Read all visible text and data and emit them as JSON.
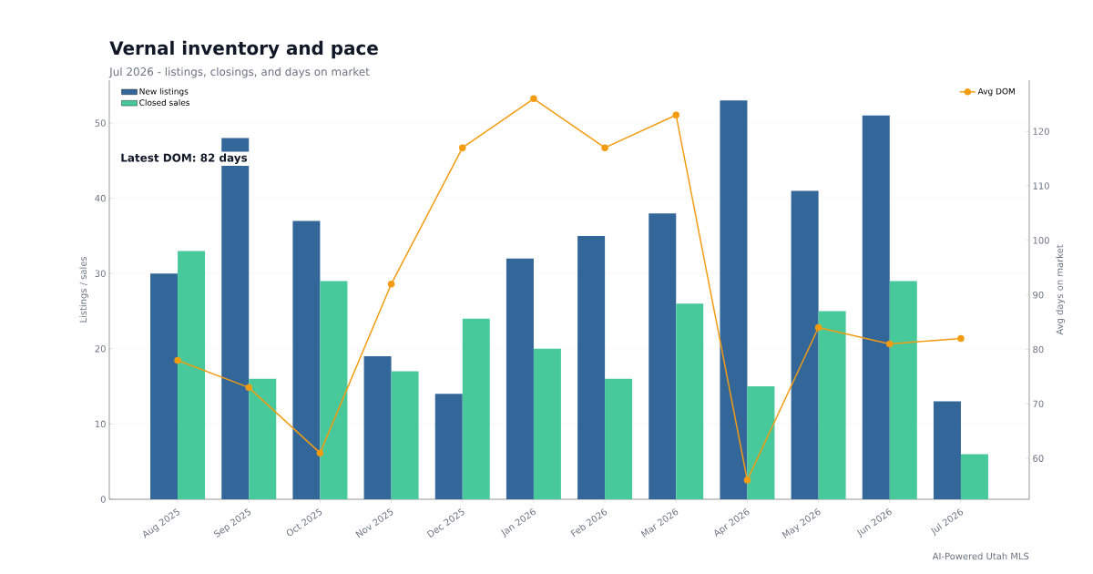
{
  "chart_data": {
    "type": "bar",
    "title": "Vernal inventory and pace",
    "subtitle": "Jul 2026 - listings, closings, and days on market",
    "ylabel": "Listings / sales",
    "y2label": "Avg days on market",
    "annotations": [
      "Latest DOM: 82 days",
      "AI-Powered Utah MLS"
    ],
    "categories": [
      "Aug 2025",
      "Sep 2025",
      "Oct 2025",
      "Nov 2025",
      "Dec 2025",
      "Jan 2026",
      "Feb 2026",
      "Mar 2026",
      "Apr 2026",
      "May 2026",
      "Jun 2026",
      "Jul 2026"
    ],
    "series": [
      {
        "name": "New listings",
        "color": "#336699",
        "values": [
          30,
          48,
          37,
          19,
          14,
          32,
          35,
          38,
          53,
          41,
          51,
          13
        ]
      },
      {
        "name": "Closed sales",
        "color": "#48c99c",
        "values": [
          33,
          16,
          29,
          17,
          24,
          20,
          16,
          26,
          15,
          25,
          29,
          6
        ]
      },
      {
        "name": "Avg DOM",
        "type": "line",
        "axis": "y2",
        "color": "#f39c12",
        "marker": "circle",
        "values": [
          78,
          73,
          61,
          92,
          117,
          126,
          117,
          123,
          56,
          84,
          81,
          82
        ]
      }
    ],
    "ylim": [
      0,
      55.7
    ],
    "yticks": [
      0,
      10,
      20,
      30,
      40,
      50
    ],
    "y2lim": [
      52.5,
      129.4
    ],
    "y2ticks": [
      60,
      70,
      80,
      90,
      100,
      110,
      120
    ],
    "grid": "y",
    "legend": "top left"
  }
}
